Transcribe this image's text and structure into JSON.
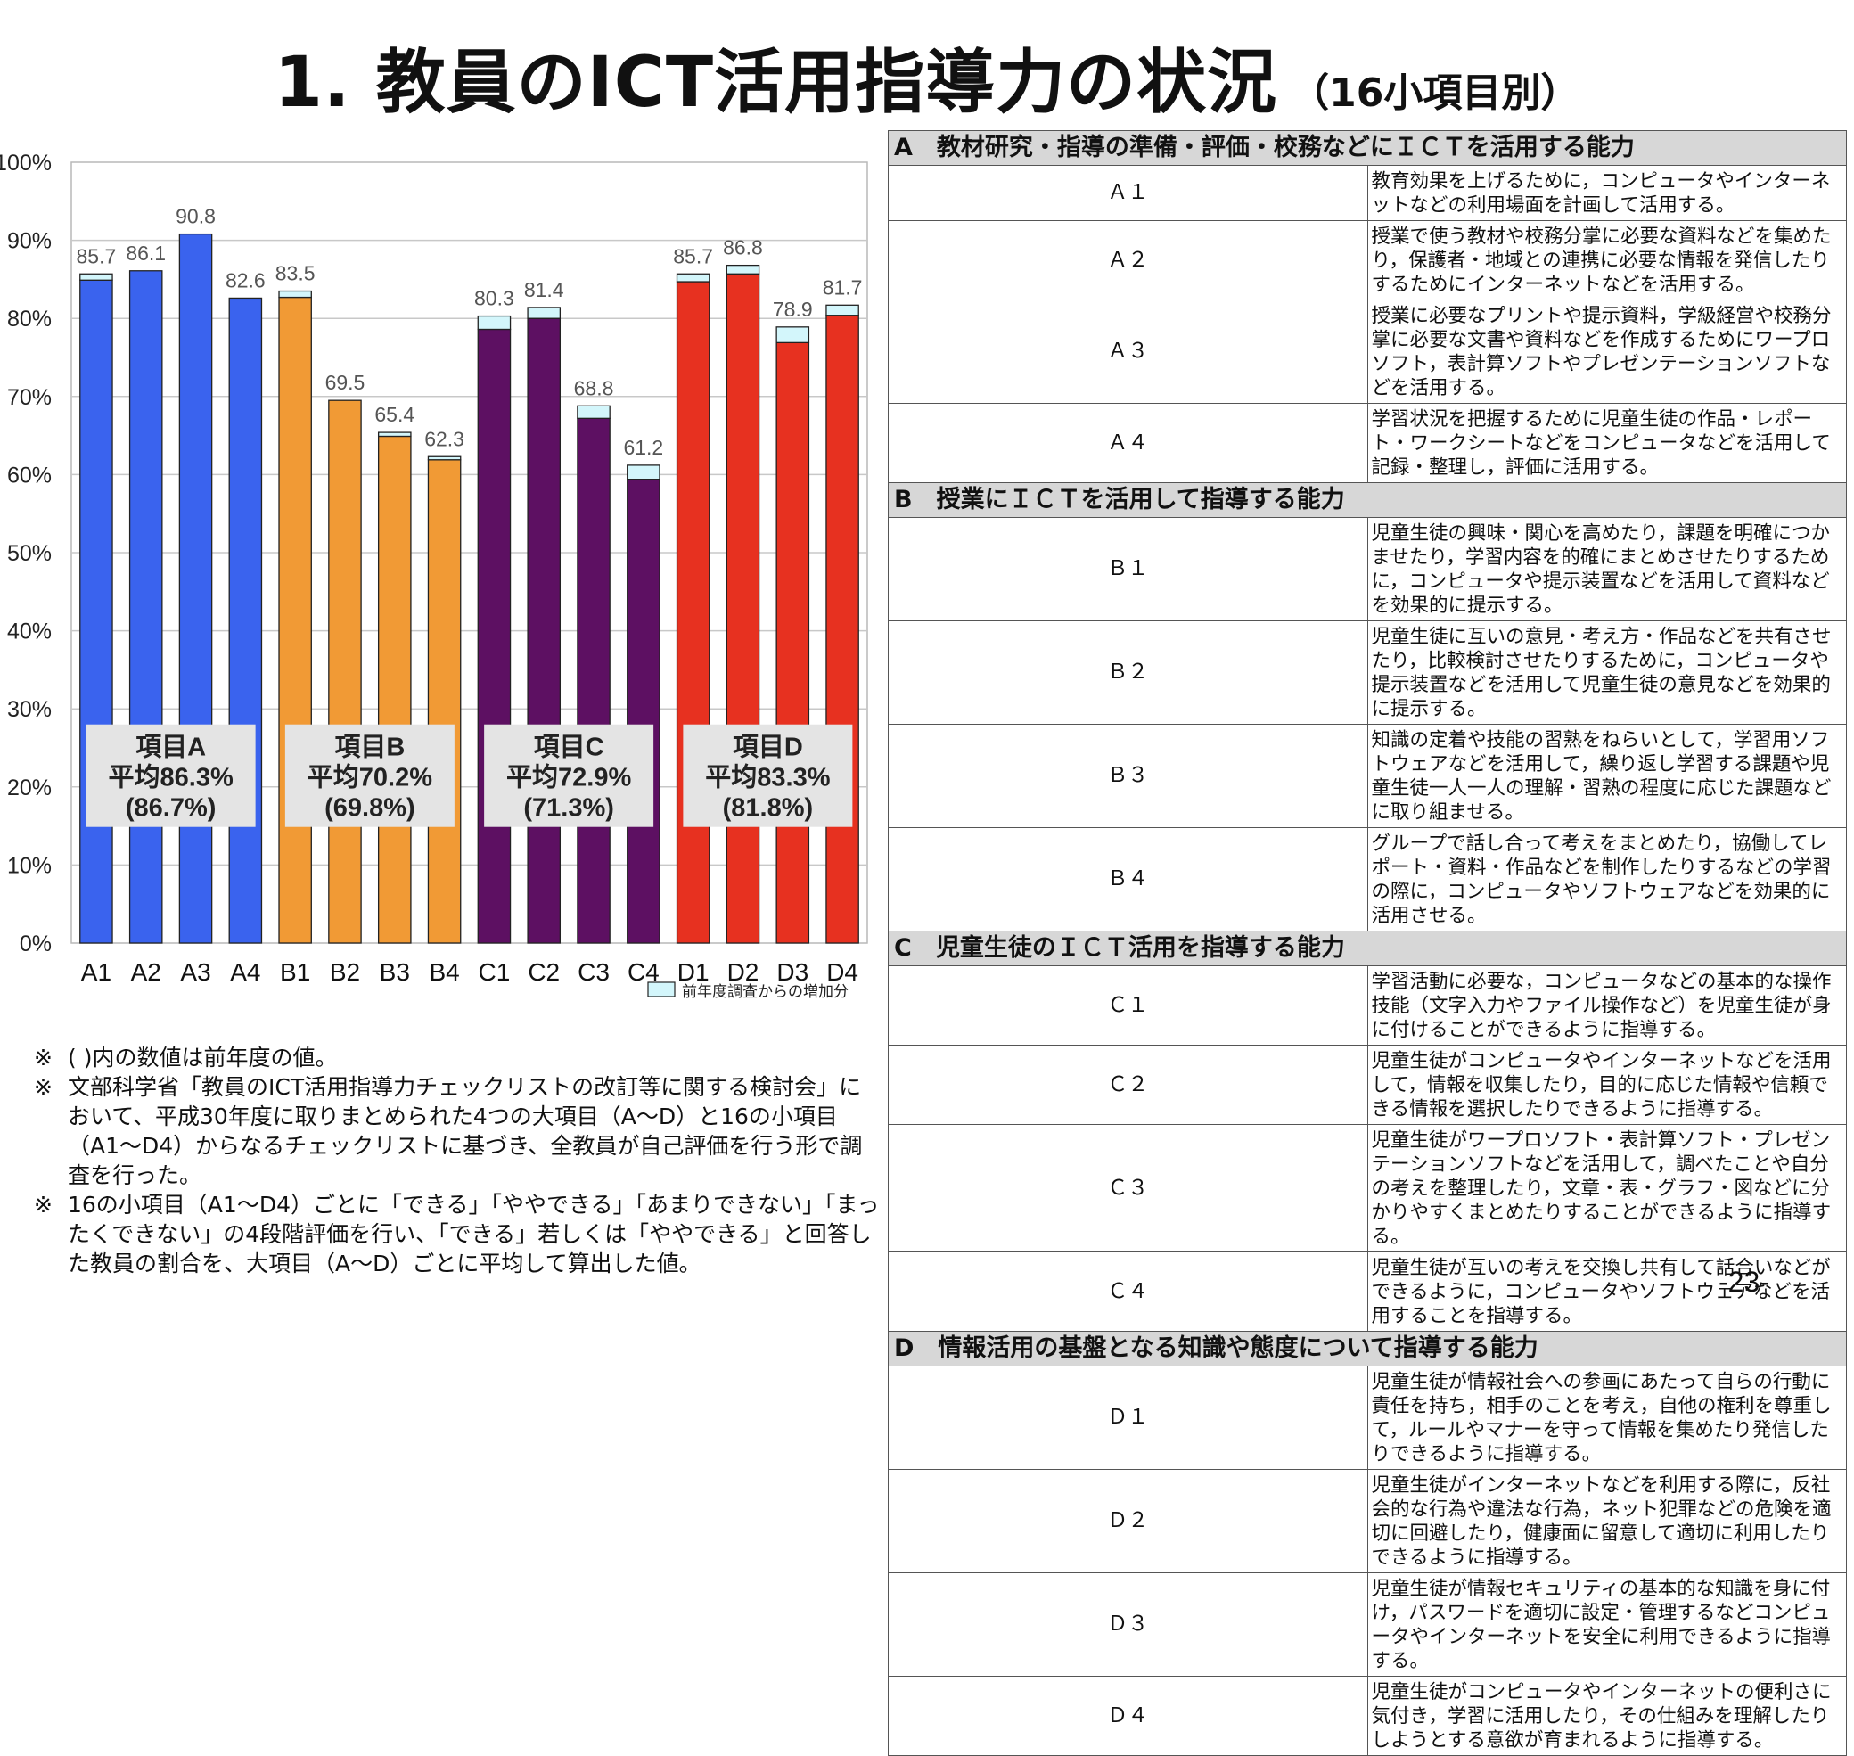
{
  "header": {
    "title": "1. 教員のICT活用指導力の状況",
    "subtitle": "（16小項目別）"
  },
  "chart_data": {
    "type": "bar",
    "categories": [
      "A1",
      "A2",
      "A3",
      "A4",
      "B1",
      "B2",
      "B3",
      "B4",
      "C1",
      "C2",
      "C3",
      "C4",
      "D1",
      "D2",
      "D3",
      "D4"
    ],
    "yticks": [
      "0%",
      "10%",
      "20%",
      "30%",
      "40%",
      "50%",
      "60%",
      "70%",
      "80%",
      "90%",
      "100%"
    ],
    "ylim": [
      0,
      100
    ],
    "grid": true,
    "series": [
      {
        "name": "",
        "values": [
          84.9,
          86.1,
          90.8,
          82.6,
          82.7,
          69.5,
          64.9,
          61.9,
          78.6,
          80.0,
          67.2,
          59.4,
          84.7,
          85.7,
          76.9,
          80.4
        ]
      },
      {
        "name": "前年度調査からの増加分",
        "values": [
          0.8,
          0,
          0,
          0,
          0.8,
          0,
          0.5,
          0.4,
          1.7,
          1.4,
          1.6,
          1.8,
          1.0,
          1.1,
          2.0,
          1.3
        ]
      }
    ],
    "totals": [
      85.7,
      86.1,
      90.8,
      82.6,
      83.5,
      69.5,
      65.4,
      62.3,
      80.3,
      81.4,
      68.8,
      61.2,
      85.7,
      86.8,
      78.9,
      81.7
    ],
    "data_labels": [
      "85.7",
      "86.1",
      "90.8",
      "82.6",
      "83.5",
      "69.5",
      "65.4",
      "62.3",
      "80.3",
      "81.4",
      "68.8",
      "61.2",
      "85.7",
      "86.8",
      "78.9",
      "81.7"
    ],
    "group_colors": [
      "#3a63ee",
      "#f19a35",
      "#5d1062",
      "#e73120"
    ],
    "increase_color": "#d3f6fb",
    "legend": {
      "label": "前年度調査からの増加分",
      "position": "bottom-right"
    },
    "groups": [
      {
        "line1": "項目A",
        "line2": "平均86.3%",
        "line3": "(86.7%)"
      },
      {
        "line1": "項目B",
        "line2": "平均70.2%",
        "line3": "(69.8%)"
      },
      {
        "line1": "項目C",
        "line2": "平均72.9%",
        "line3": "(71.3%)"
      },
      {
        "line1": "項目D",
        "line2": "平均83.3%",
        "line3": "(81.8%)"
      }
    ]
  },
  "notes": [
    {
      "mark": "※",
      "text": "( )内の数値は前年度の値。"
    },
    {
      "mark": "※",
      "text": "文部科学省「教員のICT活用指導力チェックリストの改訂等に関する検討会」において、平成30年度に取りまとめられた4つの大項目（A～D）と16の小項目（A1～D4）からなるチェックリストに基づき、全教員が自己評価を行う形で調査を行った。"
    },
    {
      "mark": "※",
      "text": "16の小項目（A1～D4）ごとに「できる」「ややできる」「あまりできない」「まったくできない」の4段階評価を行い、「できる」若しくは「ややできる」と回答した教員の割合を、大項目（A～D）ごとに平均して算出した値。"
    }
  ],
  "categories": [
    {
      "code": "A",
      "title": "教材研究・指導の準備・評価・校務などにＩＣＴを活用する能力",
      "items": [
        {
          "code": "Ａ１",
          "text": "教育効果を上げるために，コンピュータやインターネットなどの利用場面を計画して活用する。"
        },
        {
          "code": "Ａ２",
          "text": "授業で使う教材や校務分掌に必要な資料などを集めたり，保護者・地域との連携に必要な情報を発信したりするためにインターネットなどを活用する。"
        },
        {
          "code": "Ａ３",
          "text": "授業に必要なプリントや提示資料，学級経営や校務分掌に必要な文書や資料などを作成するためにワープロソフト，表計算ソフトやプレゼンテーションソフトなどを活用する。"
        },
        {
          "code": "Ａ４",
          "text": "学習状況を把握するために児童生徒の作品・レポート・ワークシートなどをコンピュータなどを活用して記録・整理し，評価に活用する。"
        }
      ]
    },
    {
      "code": "B",
      "title": "授業にＩＣＴを活用して指導する能力",
      "items": [
        {
          "code": "Ｂ１",
          "text": "児童生徒の興味・関心を高めたり，課題を明確につかませたり，学習内容を的確にまとめさせたりするために，コンピュータや提示装置などを活用して資料などを効果的に提示する。"
        },
        {
          "code": "Ｂ２",
          "text": "児童生徒に互いの意見・考え方・作品などを共有させたり，比較検討させたりするために，コンピュータや提示装置などを活用して児童生徒の意見などを効果的に提示する。"
        },
        {
          "code": "Ｂ３",
          "text": "知識の定着や技能の習熟をねらいとして，学習用ソフトウェアなどを活用して，繰り返し学習する課題や児童生徒一人一人の理解・習熟の程度に応じた課題などに取り組ませる。"
        },
        {
          "code": "Ｂ４",
          "text": "グループで話し合って考えをまとめたり，協働してレポート・資料・作品などを制作したりするなどの学習の際に，コンピュータやソフトウェアなどを効果的に活用させる。"
        }
      ]
    },
    {
      "code": "C",
      "title": "児童生徒のＩＣＴ活用を指導する能力",
      "items": [
        {
          "code": "Ｃ１",
          "text": "学習活動に必要な，コンピュータなどの基本的な操作技能（文字入力やファイル操作など）を児童生徒が身に付けることができるように指導する。"
        },
        {
          "code": "Ｃ２",
          "text": "児童生徒がコンピュータやインターネットなどを活用して，情報を収集したり，目的に応じた情報や信頼できる情報を選択したりできるように指導する。"
        },
        {
          "code": "Ｃ３",
          "text": "児童生徒がワープロソフト・表計算ソフト・プレゼンテーションソフトなどを活用して，調べたことや自分の考えを整理したり，文章・表・グラフ・図などに分かりやすくまとめたりすることができるように指導する。"
        },
        {
          "code": "Ｃ４",
          "text": "児童生徒が互いの考えを交換し共有して話合いなどができるように，コンピュータやソフトウェアなどを活用することを指導する。"
        }
      ]
    },
    {
      "code": "D",
      "title": "情報活用の基盤となる知識や態度について指導する能力",
      "items": [
        {
          "code": "Ｄ１",
          "text": "児童生徒が情報社会への参画にあたって自らの行動に責任を持ち，相手のことを考え，自他の権利を尊重して，ルールやマナーを守って情報を集めたり発信したりできるように指導する。"
        },
        {
          "code": "Ｄ２",
          "text": "児童生徒がインターネットなどを利用する際に，反社会的な行為や違法な行為，ネット犯罪などの危険を適切に回避したり，健康面に留意して適切に利用したりできるように指導する。"
        },
        {
          "code": "Ｄ３",
          "text": "児童生徒が情報セキュリティの基本的な知識を身に付け，パスワードを適切に設定・管理するなどコンピュータやインターネットを安全に利用できるように指導する。"
        },
        {
          "code": "Ｄ４",
          "text": "児童生徒がコンピュータやインターネットの便利さに気付き，学習に活用したり，その仕組みを理解したりしようとする意欲が育まれるように指導する。"
        }
      ]
    }
  ],
  "page_number": "-23-"
}
